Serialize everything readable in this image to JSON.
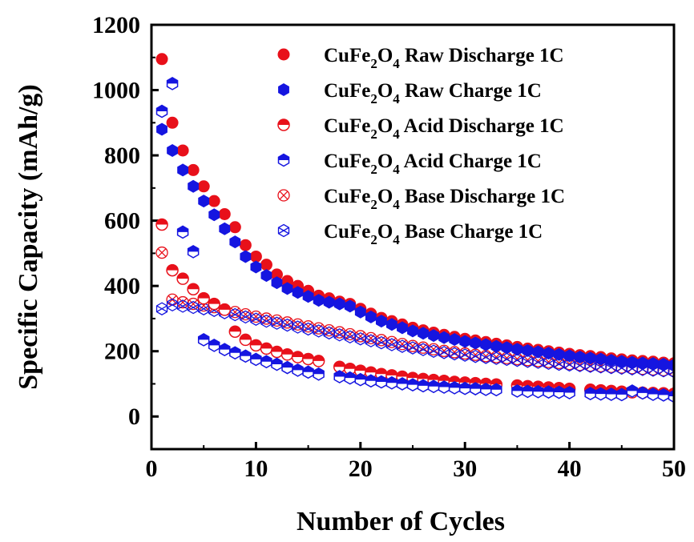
{
  "chart_data": {
    "type": "scatter",
    "xlabel": "Number of Cycles",
    "ylabel": "Specific Capacity (mAh/g)",
    "xlim": [
      0,
      50
    ],
    "ylim": [
      -100,
      1200
    ],
    "xticks": [
      0,
      10,
      20,
      30,
      40,
      50
    ],
    "yticks": [
      0,
      200,
      400,
      600,
      800,
      1000,
      1200
    ],
    "grid": false,
    "legend_position": "top-right",
    "series": [
      {
        "name": "CuFe2O4 Raw Discharge 1C",
        "label_parts": [
          "CuFe",
          "2",
          "O",
          "4",
          " Raw Discharge 1C"
        ],
        "marker": "circle-filled",
        "color": "#e8101a",
        "x": [
          1,
          2,
          3,
          4,
          5,
          6,
          7,
          8,
          9,
          10,
          11,
          12,
          13,
          14,
          15,
          16,
          17,
          18,
          19,
          20,
          21,
          22,
          23,
          24,
          25,
          26,
          27,
          28,
          29,
          30,
          31,
          32,
          33,
          34,
          35,
          36,
          37,
          38,
          39,
          40,
          41,
          42,
          43,
          44,
          45,
          46,
          47,
          48,
          49,
          50
        ],
        "y": [
          1095,
          900,
          815,
          755,
          705,
          660,
          620,
          580,
          525,
          490,
          465,
          435,
          415,
          400,
          385,
          370,
          362,
          352,
          345,
          330,
          315,
          302,
          292,
          282,
          272,
          264,
          257,
          250,
          244,
          238,
          233,
          228,
          223,
          218,
          213,
          208,
          204,
          200,
          196,
          192,
          188,
          185,
          182,
          178,
          175,
          172,
          170,
          168,
          165,
          163
        ]
      },
      {
        "name": "CuFe2O4 Raw Charge 1C",
        "label_parts": [
          "CuFe",
          "2",
          "O",
          "4",
          " Raw Charge 1C"
        ],
        "marker": "hexagon-filled",
        "color": "#1515e0",
        "x": [
          1,
          2,
          3,
          4,
          5,
          6,
          7,
          8,
          9,
          10,
          11,
          12,
          13,
          14,
          15,
          16,
          17,
          18,
          19,
          20,
          21,
          22,
          23,
          24,
          25,
          26,
          27,
          28,
          29,
          30,
          31,
          32,
          33,
          34,
          35,
          36,
          37,
          38,
          39,
          40,
          41,
          42,
          43,
          44,
          45,
          46,
          47,
          48,
          49,
          50
        ],
        "y": [
          880,
          815,
          755,
          705,
          660,
          618,
          575,
          535,
          490,
          458,
          432,
          410,
          392,
          380,
          368,
          356,
          350,
          345,
          338,
          320,
          305,
          292,
          282,
          272,
          262,
          255,
          248,
          242,
          236,
          230,
          225,
          220,
          215,
          211,
          206,
          202,
          198,
          194,
          190,
          186,
          182,
          179,
          176,
          172,
          169,
          166,
          164,
          162,
          160,
          158
        ]
      },
      {
        "name": "CuFe2O4 Acid Discharge 1C",
        "label_parts": [
          "CuFe",
          "2",
          "O",
          "4",
          " Acid Discharge 1C"
        ],
        "marker": "circle-half-top",
        "color": "#e8101a",
        "x": [
          1,
          2,
          3,
          4,
          5,
          6,
          7,
          8,
          9,
          10,
          11,
          12,
          13,
          14,
          15,
          16,
          18,
          19,
          20,
          21,
          22,
          23,
          24,
          25,
          26,
          27,
          28,
          29,
          30,
          31,
          32,
          33,
          35,
          36,
          37,
          38,
          39,
          40,
          42,
          43,
          44,
          45,
          46,
          47,
          48,
          49,
          50
        ],
        "y": [
          588,
          448,
          422,
          390,
          362,
          345,
          327,
          260,
          235,
          218,
          208,
          198,
          190,
          182,
          176,
          170,
          152,
          146,
          140,
          135,
          130,
          126,
          122,
          118,
          115,
          112,
          109,
          106,
          104,
          102,
          100,
          98,
          95,
          93,
          91,
          89,
          87,
          85,
          82,
          80,
          78,
          76,
          74,
          73,
          72,
          71,
          70
        ]
      },
      {
        "name": "CuFe2O4 Acid Charge 1C",
        "label_parts": [
          "CuFe",
          "2",
          "O",
          "4",
          " Acid Charge 1C"
        ],
        "marker": "hexagon-half-top",
        "color": "#1515e0",
        "x": [
          1,
          2,
          3,
          4,
          5,
          6,
          7,
          8,
          9,
          10,
          11,
          12,
          13,
          14,
          15,
          16,
          18,
          19,
          20,
          21,
          22,
          23,
          24,
          25,
          26,
          27,
          28,
          29,
          30,
          31,
          32,
          33,
          35,
          36,
          37,
          38,
          39,
          40,
          42,
          43,
          44,
          45,
          46,
          47,
          48,
          49,
          50
        ],
        "y": [
          935,
          1020,
          565,
          505,
          235,
          218,
          205,
          195,
          185,
          175,
          168,
          160,
          150,
          142,
          136,
          130,
          122,
          118,
          113,
          109,
          106,
          103,
          100,
          97,
          94,
          92,
          90,
          88,
          86,
          85,
          83,
          82,
          78,
          77,
          76,
          75,
          74,
          73,
          70,
          69,
          68,
          67,
          78,
          72,
          68,
          66,
          62
        ]
      },
      {
        "name": "CuFe2O4 Base Discharge 1C",
        "label_parts": [
          "CuFe",
          "2",
          "O",
          "4",
          " Base Discharge 1C"
        ],
        "marker": "circle-x",
        "color": "#e8101a",
        "x": [
          1,
          2,
          3,
          4,
          5,
          6,
          7,
          8,
          9,
          10,
          11,
          12,
          13,
          14,
          15,
          16,
          17,
          18,
          19,
          20,
          21,
          22,
          23,
          24,
          25,
          26,
          27,
          28,
          29,
          30,
          31,
          32,
          33,
          34,
          35,
          36,
          37,
          38,
          39,
          40,
          41,
          42,
          43,
          44,
          45,
          46,
          47,
          48,
          49,
          50
        ],
        "y": [
          502,
          358,
          350,
          345,
          340,
          335,
          328,
          320,
          313,
          306,
          300,
          294,
          288,
          282,
          276,
          270,
          264,
          258,
          252,
          246,
          240,
          234,
          228,
          222,
          216,
          211,
          206,
          201,
          197,
          193,
          189,
          185,
          182,
          179,
          176,
          173,
          170,
          167,
          164,
          161,
          158,
          156,
          154,
          152,
          150,
          148,
          146,
          144,
          142,
          140
        ]
      },
      {
        "name": "CuFe2O4 Base Charge 1C",
        "label_parts": [
          "CuFe",
          "2",
          "O",
          "4",
          " Base Charge 1C"
        ],
        "marker": "hexagon-x",
        "color": "#1515e0",
        "x": [
          1,
          2,
          3,
          4,
          5,
          6,
          7,
          8,
          9,
          10,
          11,
          12,
          13,
          14,
          15,
          16,
          17,
          18,
          19,
          20,
          21,
          22,
          23,
          24,
          25,
          26,
          27,
          28,
          29,
          30,
          31,
          32,
          33,
          34,
          35,
          36,
          37,
          38,
          39,
          40,
          41,
          42,
          43,
          44,
          45,
          46,
          47,
          48,
          49,
          50
        ],
        "y": [
          330,
          342,
          338,
          334,
          330,
          325,
          318,
          312,
          305,
          298,
          292,
          286,
          280,
          274,
          268,
          262,
          256,
          250,
          244,
          238,
          232,
          226,
          220,
          215,
          210,
          205,
          200,
          196,
          192,
          188,
          184,
          181,
          178,
          175,
          172,
          169,
          166,
          163,
          160,
          158,
          156,
          154,
          152,
          150,
          148,
          146,
          144,
          142,
          140,
          138
        ]
      }
    ]
  }
}
